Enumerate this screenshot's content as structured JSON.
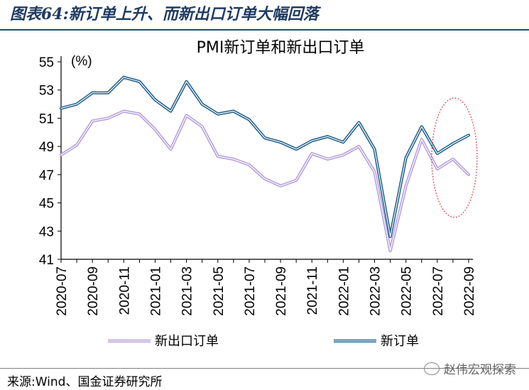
{
  "figure_title": "图表64:新订单上升、而新出口订单大幅回落",
  "source": "来源:Wind、国金证券研究所",
  "watermark": "赵伟宏观探索",
  "colors": {
    "new_orders": "#1f5f8b",
    "new_export_orders": "#b39ddb",
    "highlight": "#e0202a",
    "axis": "#000000",
    "header_rule": "#1f4e79"
  },
  "chart_data": {
    "type": "line",
    "title": "PMI新订单和新出口订单",
    "ylabel": "(%)",
    "ylim": [
      41,
      55
    ],
    "yticks": [
      41,
      43,
      45,
      47,
      49,
      51,
      53,
      55
    ],
    "x": [
      "2020-07",
      "2020-08",
      "2020-09",
      "2020-10",
      "2020-11",
      "2020-12",
      "2021-01",
      "2021-02",
      "2021-03",
      "2021-04",
      "2021-05",
      "2021-06",
      "2021-07",
      "2021-08",
      "2021-09",
      "2021-10",
      "2021-11",
      "2021-12",
      "2022-01",
      "2022-02",
      "2022-03",
      "2022-04",
      "2022-05",
      "2022-06",
      "2022-07",
      "2022-08",
      "2022-09"
    ],
    "xtick_labels": [
      "2020-07",
      "2020-09",
      "2020-11",
      "2021-01",
      "2021-03",
      "2021-05",
      "2021-07",
      "2021-09",
      "2021-11",
      "2022-01",
      "2022-03",
      "2022-05",
      "2022-07",
      "2022-09"
    ],
    "series": [
      {
        "name": "新出口订单",
        "color": "#b39ddb",
        "values": [
          48.4,
          49.1,
          50.8,
          51.0,
          51.5,
          51.3,
          50.2,
          48.8,
          51.2,
          50.4,
          48.3,
          48.1,
          47.7,
          46.7,
          46.2,
          46.6,
          48.5,
          48.1,
          48.4,
          49.0,
          47.2,
          41.6,
          46.2,
          49.5,
          47.4,
          48.1,
          47.0
        ]
      },
      {
        "name": "新订单",
        "color": "#1f5f8b",
        "values": [
          51.7,
          52.0,
          52.8,
          52.8,
          53.9,
          53.6,
          52.3,
          51.5,
          53.6,
          52.0,
          51.3,
          51.5,
          50.9,
          49.6,
          49.3,
          48.8,
          49.4,
          49.7,
          49.3,
          50.7,
          48.8,
          42.6,
          48.2,
          50.4,
          48.5,
          49.2,
          49.8
        ]
      }
    ],
    "legend": {
      "position": "bottom"
    },
    "annotation": {
      "type": "dotted-ellipse",
      "target": "2022-07 to 2022-09"
    }
  }
}
